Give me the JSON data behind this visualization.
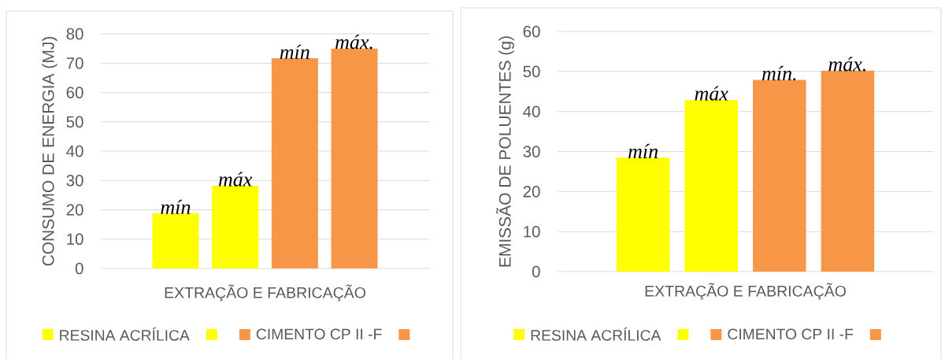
{
  "chart_data": [
    {
      "type": "bar",
      "ylabel": "CONSUMO DE ENERGIA (MJ)",
      "categories": [
        "EXTRAÇÃO E FABRICAÇÃO"
      ],
      "series": [
        {
          "name": "RESINA ACRÍLICA",
          "color": "#ffff00",
          "values": [
            18.8
          ],
          "value_labels": [
            "mín"
          ]
        },
        {
          "color": "#ffff00",
          "values": [
            28.2
          ],
          "value_labels": [
            "máx"
          ]
        },
        {
          "name": "CIMENTO CP II -F",
          "color": "#f79646",
          "values": [
            71.7
          ],
          "value_labels": [
            "mín"
          ]
        },
        {
          "color": "#f79646",
          "values": [
            75.0
          ],
          "value_labels": [
            "máx."
          ]
        }
      ],
      "ylim": [
        0,
        80
      ],
      "yticks": [
        0,
        10,
        20,
        30,
        40,
        50,
        60,
        70,
        80
      ],
      "grid": "y",
      "legend": "bottom"
    },
    {
      "type": "bar",
      "ylabel": "EMISSÃO DE POLUENTES (g)",
      "categories": [
        "EXTRAÇÃO E FABRICAÇÃO"
      ],
      "series": [
        {
          "name": "RESINA ACRÍLICA",
          "color": "#ffff00",
          "values": [
            28.5
          ],
          "value_labels": [
            "mín"
          ]
        },
        {
          "color": "#ffff00",
          "values": [
            42.9
          ],
          "value_labels": [
            "máx"
          ]
        },
        {
          "name": "CIMENTO CP II -F",
          "color": "#f79646",
          "values": [
            47.9
          ],
          "value_labels": [
            "mín."
          ]
        },
        {
          "color": "#f79646",
          "values": [
            50.2
          ],
          "value_labels": [
            "máx."
          ]
        }
      ],
      "ylim": [
        0,
        60
      ],
      "yticks": [
        0,
        10,
        20,
        30,
        40,
        50,
        60
      ],
      "grid": "y",
      "legend": "bottom"
    }
  ]
}
